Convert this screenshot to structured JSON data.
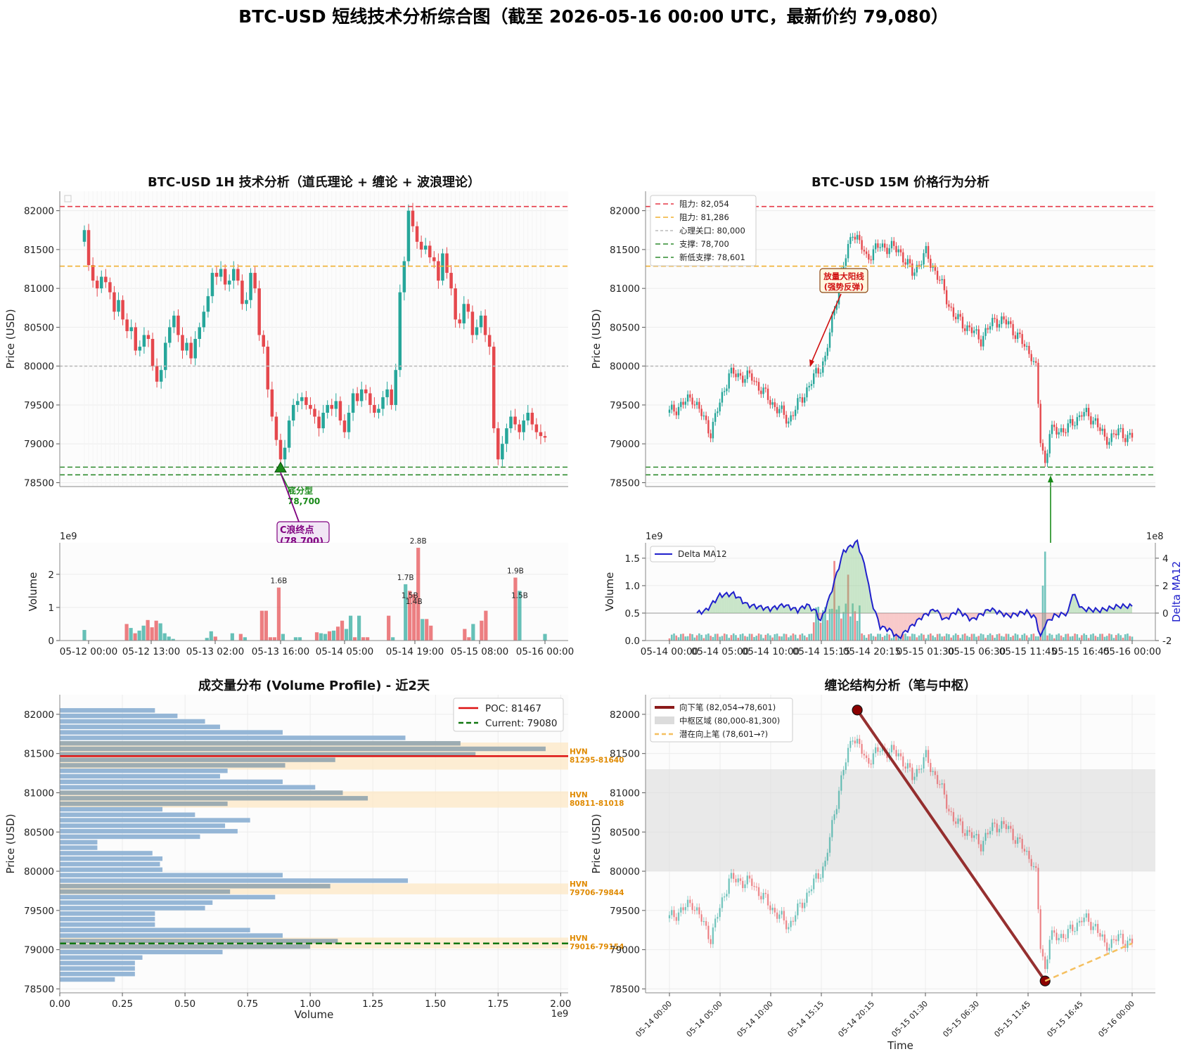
{
  "suptitle": "BTC-USD 短线技术分析综合图（截至 2026-05-16 00:00 UTC，最新价约 79,080）",
  "colors": {
    "up": "#26a69a",
    "down": "#e5484d",
    "resistance": "#e63946",
    "resistance2": "#f0b030",
    "psych": "#bbbbbb",
    "support": "#2e8b2e",
    "delta": "#2020cc",
    "poc": "#dd1111",
    "current": "#117711",
    "bar": "#8fb2d4",
    "hvn": "#fde9c8",
    "pen": "#8b1a1a",
    "zone": "#dcdcdc",
    "potential": "#f5c060"
  },
  "chart_data": [
    {
      "type": "line",
      "subtype": "candlestick",
      "title": "BTC-USD 1H 技术分析（道氏理论 + 缠论 + 波浪理论）",
      "ylabel": "Price (USD)",
      "ylim": [
        78450,
        82250
      ],
      "yticks": [
        "78500",
        "79000",
        "79500",
        "80000",
        "80500",
        "81000",
        "81500",
        "82000"
      ],
      "hlines": [
        {
          "label": "阻力",
          "value": 82054
        },
        {
          "label": "阻力",
          "value": 81286
        },
        {
          "label": "心理关口",
          "value": 80000
        },
        {
          "label": "支撑",
          "value": 78700
        },
        {
          "label": "新低支撑",
          "value": 78601
        }
      ],
      "close": [
        81750,
        81300,
        81100,
        81000,
        81150,
        81080,
        80950,
        80700,
        80850,
        80600,
        80450,
        80500,
        80200,
        80250,
        80400,
        80350,
        80000,
        79800,
        79950,
        80300,
        80500,
        80650,
        80400,
        80200,
        80300,
        80100,
        80350,
        80500,
        80700,
        80900,
        81200,
        81150,
        81250,
        81050,
        81100,
        81250,
        81100,
        80800,
        80850,
        81200,
        81000,
        80400,
        80250,
        79700,
        79350,
        79050,
        78800,
        78950,
        79300,
        79500,
        79550,
        79600,
        79500,
        79450,
        79350,
        79200,
        79400,
        79500,
        79450,
        79550,
        79300,
        79150,
        79400,
        79650,
        79550,
        79700,
        79650,
        79500,
        79400,
        79450,
        79600,
        79700,
        79500,
        79950,
        80950,
        81350,
        82000,
        81800,
        81600,
        81500,
        81550,
        81400,
        81350,
        81100,
        81450,
        81200,
        81000,
        80600,
        80550,
        80800,
        80700,
        80400,
        80500,
        80650,
        80400,
        80250,
        79200,
        78800,
        79000,
        79200,
        79350,
        79250,
        79150,
        79300,
        79400,
        79250,
        79150,
        79100,
        79080
      ],
      "volumes_1e9": [
        0.32,
        0,
        0,
        0,
        0,
        0,
        0,
        0,
        0,
        0,
        0.5,
        0.38,
        0.22,
        0.3,
        0.45,
        0.62,
        0.4,
        0.6,
        0.52,
        0.22,
        0.12,
        0.05,
        0,
        0,
        0,
        0,
        0,
        0,
        0,
        0.08,
        0.28,
        0.12,
        0,
        0,
        0,
        0.22,
        0,
        0.2,
        0.1,
        0,
        0,
        0,
        0.9,
        0.9,
        0.1,
        0.1,
        1.6,
        0.2,
        0,
        0,
        0.1,
        0.1,
        0,
        0,
        0,
        0.25,
        0.22,
        0.2,
        0.28,
        0.3,
        0.42,
        0.6,
        0.35,
        0.75,
        0.1,
        0.75,
        0.1,
        0.1,
        0,
        0,
        0,
        0,
        0.75,
        0.1,
        0,
        0,
        1.7,
        1.5,
        1.4,
        2.8,
        0.65,
        0.65,
        0.45,
        0,
        0,
        0,
        0,
        0,
        0,
        0,
        0.35,
        0.1,
        0.5,
        0,
        0.6,
        0.9,
        0,
        0,
        0,
        0,
        0,
        0,
        1.9,
        1.5,
        0,
        0,
        0,
        0,
        0,
        0.2
      ],
      "volume_ylabel": "Volume",
      "volume_exponent": "1e9",
      "volume_yticks": [
        "0",
        "1",
        "2"
      ],
      "volume_labels": [
        "1.6B",
        "1.7B",
        "1.5B",
        "1.4B",
        "2.8B",
        "1.9B",
        "1.5B"
      ],
      "xtick_labels": [
        "05-12 00:00",
        "05-12 13:00",
        "05-13 02:00",
        "05-13 16:00",
        "05-14 05:00",
        "05-14 19:00",
        "05-15 08:00",
        "05-16 00:00"
      ],
      "annotations": [
        "底分型\n78,700",
        "C浪终点\n(78,700)"
      ]
    },
    {
      "type": "line",
      "subtype": "candlestick",
      "title": "BTC-USD 15M 价格行为分析",
      "ylabel": "Price (USD)",
      "ylim": [
        78450,
        82250
      ],
      "yticks": [
        "78500",
        "79000",
        "79500",
        "80000",
        "80500",
        "81000",
        "81500",
        "82000"
      ],
      "legend": [
        "阻力: 82,054",
        "阻力: 81,286",
        "心理关口: 80,000",
        "支撑: 78,700",
        "新低支撑: 78,601"
      ],
      "legend_loc": "upper left",
      "key_points": [
        [
          0,
          79400
        ],
        [
          10,
          79600
        ],
        [
          18,
          79150
        ],
        [
          26,
          79900
        ],
        [
          36,
          79850
        ],
        [
          44,
          79550
        ],
        [
          52,
          79300
        ],
        [
          60,
          79700
        ],
        [
          68,
          80100
        ],
        [
          74,
          81050
        ],
        [
          80,
          81750
        ],
        [
          86,
          81400
        ],
        [
          92,
          81550
        ],
        [
          100,
          81500
        ],
        [
          106,
          81200
        ],
        [
          112,
          81450
        ],
        [
          118,
          81100
        ],
        [
          124,
          80650
        ],
        [
          130,
          80500
        ],
        [
          136,
          80350
        ],
        [
          142,
          80600
        ],
        [
          148,
          80550
        ],
        [
          154,
          80300
        ],
        [
          158,
          80150
        ],
        [
          160,
          79950
        ],
        [
          162,
          79050
        ],
        [
          164,
          78750
        ],
        [
          166,
          79150
        ],
        [
          174,
          79200
        ],
        [
          180,
          79400
        ],
        [
          186,
          79300
        ],
        [
          190,
          79050
        ],
        [
          196,
          79150
        ],
        [
          200,
          79100
        ],
        [
          202,
          79080
        ]
      ],
      "annotation": "放量大阳线\n(强势反弹)",
      "volume_ylabel": "Volume",
      "volume_exponent": "1e9",
      "volume_yticks": [
        "0.0",
        "0.5",
        "1.0",
        "1.5"
      ],
      "delta_label": "Delta MA12",
      "delta_ylabel": "Delta MA12",
      "delta_exponent": "1e8",
      "delta_yticks": [
        "-2",
        "0",
        "2",
        "4"
      ],
      "xtick_labels": [
        "05-14 00:00",
        "05-14 05:00",
        "05-14 10:00",
        "05-14 15:15",
        "05-14 20:15",
        "05-15 01:30",
        "05-15 06:30",
        "05-15 11:45",
        "05-15 16:45",
        "05-16 00:00"
      ]
    },
    {
      "type": "bar",
      "subtype": "horizontal volume profile",
      "title": "成交量分布 (Volume Profile) - 近2天",
      "xlabel": "Volume",
      "x_exponent": "1e9",
      "ylabel": "Price (USD)",
      "xlim": [
        0,
        2.03
      ],
      "ylim": [
        78450,
        82250
      ],
      "xticks": [
        "0.00",
        "0.25",
        "0.50",
        "0.75",
        "1.00",
        "1.25",
        "1.50",
        "1.75",
        "2.00"
      ],
      "yticks": [
        "78500",
        "79000",
        "79500",
        "80000",
        "80500",
        "81000",
        "81500",
        "82000"
      ],
      "price_levels": [
        78620,
        78690,
        78760,
        78830,
        78900,
        78970,
        79040,
        79110,
        79180,
        79250,
        79320,
        79390,
        79460,
        79530,
        79600,
        79670,
        79740,
        79810,
        79880,
        79950,
        80020,
        80090,
        80160,
        80230,
        80300,
        80370,
        80440,
        80510,
        80580,
        80650,
        80720,
        80790,
        80860,
        80930,
        81000,
        81070,
        81140,
        81210,
        81280,
        81350,
        81420,
        81490,
        81560,
        81630,
        81700,
        81770,
        81840,
        81910,
        81980,
        82050
      ],
      "volumes_1e9": [
        0.22,
        0.3,
        0.3,
        0.3,
        0.33,
        0.65,
        1.0,
        1.11,
        0.89,
        0.76,
        0.38,
        0.38,
        0.38,
        0.58,
        0.61,
        0.86,
        0.68,
        1.08,
        1.39,
        0.89,
        0.41,
        0.4,
        0.41,
        0.37,
        0.15,
        0.15,
        0.56,
        0.71,
        0.66,
        0.76,
        0.54,
        0.41,
        0.67,
        1.23,
        1.13,
        1.02,
        0.89,
        0.64,
        0.67,
        0.9,
        1.1,
        1.66,
        1.94,
        1.6,
        1.38,
        0.89,
        0.64,
        0.58,
        0.47,
        0.38
      ],
      "legend": [
        "POC: 81467",
        "Current: 79080"
      ],
      "legend_loc": "upper right",
      "poc": 81467,
      "current": 79080,
      "hvn": [
        {
          "label": "HVN",
          "range": "81295-81640",
          "low": 81295,
          "high": 81640
        },
        {
          "label": "HVN",
          "range": "80811-81018",
          "low": 80811,
          "high": 81018
        },
        {
          "label": "HVN",
          "range": "79706-79844",
          "low": 79706,
          "high": 79844
        },
        {
          "label": "HVN",
          "range": "79016-79154",
          "low": 79016,
          "high": 79154
        }
      ]
    },
    {
      "type": "line",
      "subtype": "candlestick with structure overlay",
      "title": "缠论结构分析（笔与中枢）",
      "xlabel": "Time",
      "ylabel": "Price (USD)",
      "ylim": [
        78450,
        82250
      ],
      "yticks": [
        "78500",
        "79000",
        "79500",
        "80000",
        "80500",
        "81000",
        "81500",
        "82000"
      ],
      "legend": [
        "向下笔 (82,054→78,601)",
        "中枢区域 (80,000-81,300)",
        "潜在向上笔 (78,601→?)"
      ],
      "legend_loc": "upper left",
      "pen_down": {
        "from": 82054,
        "to": 78601
      },
      "zone": [
        80000,
        81300
      ],
      "potential_up": {
        "from": 78601,
        "to": 79080
      },
      "xtick_labels": [
        "05-14 00:00",
        "05-14 05:00",
        "05-14 10:00",
        "05-14 15:15",
        "05-14 20:15",
        "05-15 01:30",
        "05-15 06:30",
        "05-15 11:45",
        "05-15 16:45",
        "05-16 00:00"
      ]
    }
  ]
}
